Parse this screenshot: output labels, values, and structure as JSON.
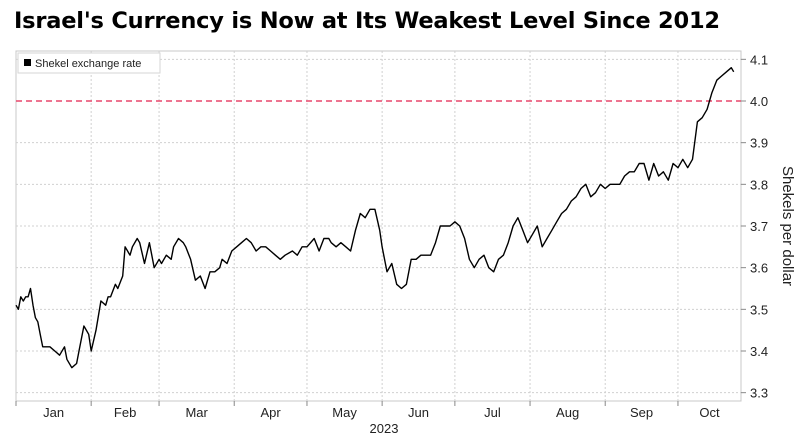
{
  "chart_data": {
    "type": "line",
    "title": "Israel's Currency is Now at Its Weakest Level Since 2012",
    "xlabel": "2023",
    "ylabel": "Shekels per dollar",
    "legend": {
      "placement": "top-left",
      "entries": [
        "Shekel exchange rate"
      ]
    },
    "grid": true,
    "x_ticks": [
      "Jan",
      "Feb",
      "Mar",
      "Apr",
      "May",
      "Jun",
      "Jul",
      "Aug",
      "Sep",
      "Oct"
    ],
    "y_ticks": [
      "3.3",
      "3.4",
      "3.5",
      "3.6",
      "3.7",
      "3.8",
      "3.9",
      "4.0",
      "4.1"
    ],
    "ylim": [
      3.28,
      4.12
    ],
    "xlim": [
      "2023-01-01",
      "2023-10-27"
    ],
    "reference_line": {
      "value": 4.0,
      "color": "#e8476b",
      "style": "dashed"
    },
    "series": [
      {
        "name": "Shekel exchange rate",
        "color": "#000000",
        "x": [
          "2023-01-01",
          "2023-01-02",
          "2023-01-03",
          "2023-01-04",
          "2023-01-05",
          "2023-01-06",
          "2023-01-07",
          "2023-01-08",
          "2023-01-09",
          "2023-01-10",
          "2023-01-11",
          "2023-01-12",
          "2023-01-13",
          "2023-01-15",
          "2023-01-17",
          "2023-01-19",
          "2023-01-21",
          "2023-01-22",
          "2023-01-24",
          "2023-01-26",
          "2023-01-27",
          "2023-01-29",
          "2023-01-31",
          "2023-02-01",
          "2023-02-03",
          "2023-02-05",
          "2023-02-07",
          "2023-02-08",
          "2023-02-09",
          "2023-02-11",
          "2023-02-12",
          "2023-02-14",
          "2023-02-15",
          "2023-02-17",
          "2023-02-18",
          "2023-02-20",
          "2023-02-21",
          "2023-02-23",
          "2023-02-25",
          "2023-02-27",
          "2023-03-01",
          "2023-03-02",
          "2023-03-04",
          "2023-03-06",
          "2023-03-07",
          "2023-03-09",
          "2023-03-11",
          "2023-03-12",
          "2023-03-14",
          "2023-03-16",
          "2023-03-18",
          "2023-03-20",
          "2023-03-22",
          "2023-03-24",
          "2023-03-26",
          "2023-03-27",
          "2023-03-29",
          "2023-03-31",
          "2023-04-02",
          "2023-04-04",
          "2023-04-06",
          "2023-04-08",
          "2023-04-10",
          "2023-04-12",
          "2023-04-14",
          "2023-04-16",
          "2023-04-18",
          "2023-04-20",
          "2023-04-22",
          "2023-04-25",
          "2023-04-27",
          "2023-04-29",
          "2023-05-01",
          "2023-05-04",
          "2023-05-06",
          "2023-05-08",
          "2023-05-10",
          "2023-05-11",
          "2023-05-13",
          "2023-05-15",
          "2023-05-17",
          "2023-05-19",
          "2023-05-21",
          "2023-05-23",
          "2023-05-25",
          "2023-05-27",
          "2023-05-29",
          "2023-05-31",
          "2023-06-01",
          "2023-06-03",
          "2023-06-05",
          "2023-06-07",
          "2023-06-09",
          "2023-06-11",
          "2023-06-13",
          "2023-06-15",
          "2023-06-17",
          "2023-06-19",
          "2023-06-21",
          "2023-06-23",
          "2023-06-25",
          "2023-06-27",
          "2023-06-29",
          "2023-07-01",
          "2023-07-03",
          "2023-07-05",
          "2023-07-07",
          "2023-07-09",
          "2023-07-11",
          "2023-07-13",
          "2023-07-15",
          "2023-07-17",
          "2023-07-19",
          "2023-07-21",
          "2023-07-23",
          "2023-07-25",
          "2023-07-27",
          "2023-07-29",
          "2023-07-31",
          "2023-08-02",
          "2023-08-04",
          "2023-08-06",
          "2023-08-08",
          "2023-08-10",
          "2023-08-12",
          "2023-08-14",
          "2023-08-16",
          "2023-08-18",
          "2023-08-20",
          "2023-08-22",
          "2023-08-24",
          "2023-08-26",
          "2023-08-28",
          "2023-08-30",
          "2023-09-01",
          "2023-09-03",
          "2023-09-05",
          "2023-09-07",
          "2023-09-09",
          "2023-09-11",
          "2023-09-13",
          "2023-09-15",
          "2023-09-17",
          "2023-09-19",
          "2023-09-21",
          "2023-09-23",
          "2023-09-25",
          "2023-09-27",
          "2023-09-29",
          "2023-10-01",
          "2023-10-03",
          "2023-10-05",
          "2023-10-07",
          "2023-10-09",
          "2023-10-11",
          "2023-10-13",
          "2023-10-15",
          "2023-10-17",
          "2023-10-19",
          "2023-10-21",
          "2023-10-23",
          "2023-10-24"
        ],
        "values": [
          3.51,
          3.5,
          3.53,
          3.52,
          3.53,
          3.53,
          3.55,
          3.51,
          3.48,
          3.47,
          3.44,
          3.41,
          3.41,
          3.41,
          3.4,
          3.39,
          3.41,
          3.38,
          3.36,
          3.37,
          3.4,
          3.46,
          3.44,
          3.4,
          3.45,
          3.52,
          3.51,
          3.53,
          3.53,
          3.56,
          3.55,
          3.58,
          3.65,
          3.63,
          3.65,
          3.67,
          3.66,
          3.61,
          3.66,
          3.6,
          3.62,
          3.61,
          3.63,
          3.62,
          3.65,
          3.67,
          3.66,
          3.65,
          3.62,
          3.57,
          3.58,
          3.55,
          3.59,
          3.59,
          3.6,
          3.62,
          3.61,
          3.64,
          3.65,
          3.66,
          3.67,
          3.66,
          3.64,
          3.65,
          3.65,
          3.64,
          3.63,
          3.62,
          3.63,
          3.64,
          3.63,
          3.65,
          3.65,
          3.67,
          3.64,
          3.67,
          3.67,
          3.66,
          3.65,
          3.66,
          3.65,
          3.64,
          3.69,
          3.73,
          3.72,
          3.74,
          3.74,
          3.69,
          3.65,
          3.59,
          3.61,
          3.56,
          3.55,
          3.56,
          3.62,
          3.62,
          3.63,
          3.63,
          3.63,
          3.66,
          3.7,
          3.7,
          3.7,
          3.71,
          3.7,
          3.67,
          3.62,
          3.6,
          3.62,
          3.63,
          3.6,
          3.59,
          3.62,
          3.63,
          3.66,
          3.7,
          3.72,
          3.69,
          3.66,
          3.68,
          3.7,
          3.65,
          3.67,
          3.69,
          3.71,
          3.73,
          3.74,
          3.76,
          3.77,
          3.79,
          3.8,
          3.77,
          3.78,
          3.8,
          3.79,
          3.8,
          3.8,
          3.8,
          3.82,
          3.83,
          3.83,
          3.85,
          3.85,
          3.81,
          3.85,
          3.82,
          3.83,
          3.81,
          3.85,
          3.84,
          3.86,
          3.84,
          3.86,
          3.95,
          3.96,
          3.98,
          4.02,
          4.05,
          4.06,
          4.07,
          4.08,
          4.07
        ]
      }
    ]
  },
  "colors": {
    "line": "#000000",
    "reference": "#e8476b",
    "grid": "#d0d0d0"
  }
}
